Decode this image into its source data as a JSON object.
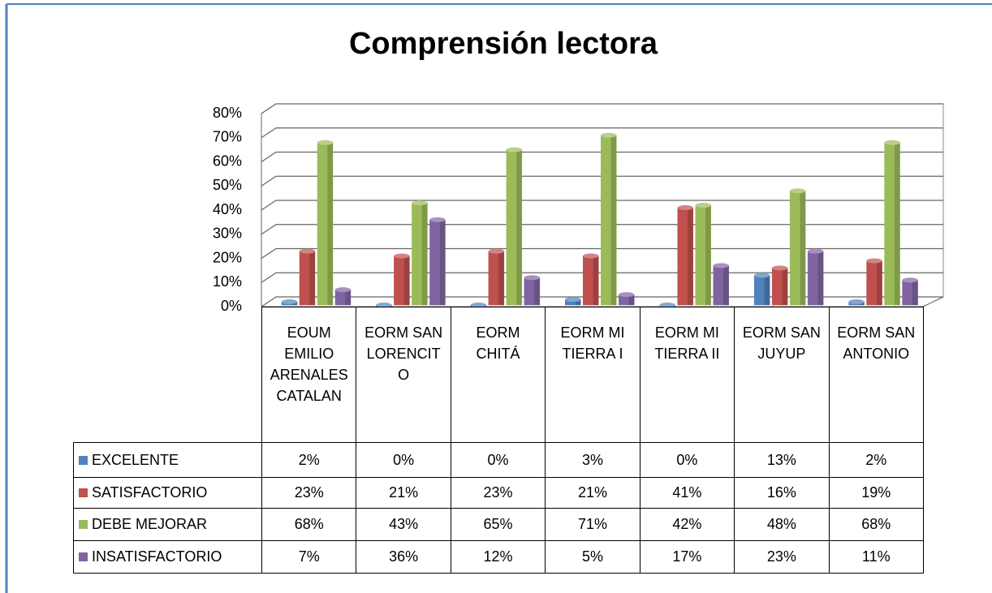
{
  "chart_data": {
    "type": "bar3d",
    "title": "Comprensión lectora",
    "categories": [
      "EOUM EMILIO ARENALES CATALAN",
      "EORM SAN LORENCITO",
      "EORM CHITÁ",
      "EORM MI TIERRA I",
      "EORM MI TIERRA II",
      "EORM SAN JUYUP",
      "EORM SAN ANTONIO"
    ],
    "series": [
      {
        "name": "EXCELENTE",
        "color": "#4f81bd",
        "values": [
          2,
          0,
          0,
          3,
          0,
          13,
          2
        ],
        "value_labels": [
          "2%",
          "0%",
          "0%",
          "3%",
          "0%",
          "13%",
          "2%"
        ]
      },
      {
        "name": "SATISFACTORIO",
        "color": "#c0504d",
        "values": [
          23,
          21,
          23,
          21,
          41,
          16,
          19
        ],
        "value_labels": [
          "23%",
          "21%",
          "23%",
          "21%",
          "41%",
          "16%",
          "19%"
        ]
      },
      {
        "name": "DEBE MEJORAR",
        "color": "#9bbb59",
        "values": [
          68,
          43,
          65,
          71,
          42,
          48,
          68
        ],
        "value_labels": [
          "68%",
          "43%",
          "65%",
          "71%",
          "42%",
          "48%",
          "68%"
        ]
      },
      {
        "name": "INSATISFACTORIO",
        "color": "#8064a2",
        "values": [
          7,
          36,
          12,
          5,
          17,
          23,
          11
        ],
        "value_labels": [
          "7%",
          "36%",
          "12%",
          "5%",
          "17%",
          "23%",
          "11%"
        ]
      }
    ],
    "ylim": [
      0,
      80
    ],
    "yticks": [
      {
        "value": 0,
        "label": "0%"
      },
      {
        "value": 10,
        "label": "10%"
      },
      {
        "value": 20,
        "label": "20%"
      },
      {
        "value": 30,
        "label": "30%"
      },
      {
        "value": 40,
        "label": "40%"
      },
      {
        "value": 50,
        "label": "50%"
      },
      {
        "value": 60,
        "label": "60%"
      },
      {
        "value": 70,
        "label": "70%"
      },
      {
        "value": 80,
        "label": "80%"
      }
    ],
    "grid": true
  }
}
